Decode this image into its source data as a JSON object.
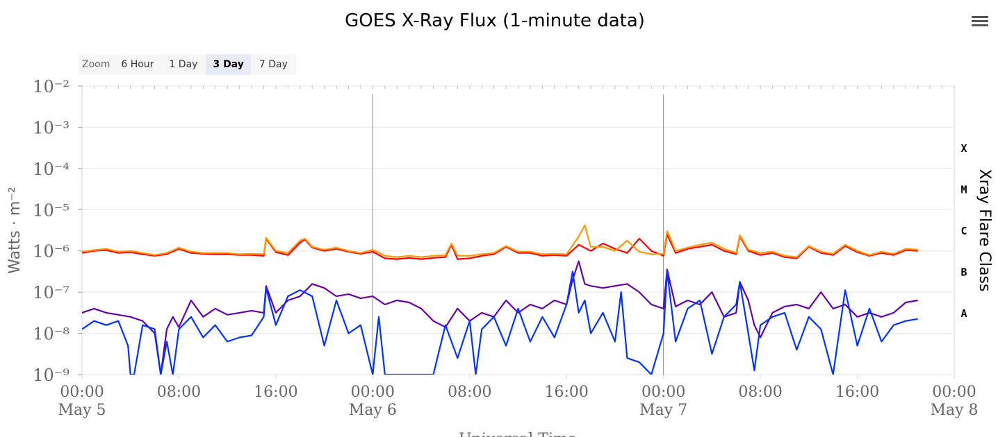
{
  "chart_data": {
    "type": "line",
    "title": "GOES X-Ray Flux (1-minute data)",
    "xlabel": "Universal Time",
    "ylabel": "Watts · m⁻²",
    "y_right_label": "Xray Flare Class",
    "y_scale": "log",
    "ylim": [
      1e-09,
      0.01
    ],
    "y_ticks": [
      "10⁻²",
      "10⁻³",
      "10⁻⁴",
      "10⁻⁵",
      "10⁻⁶",
      "10⁻⁷",
      "10⁻⁸",
      "10⁻⁹"
    ],
    "xlim": [
      "May 5 00:00",
      "May 8 00:00"
    ],
    "x_ticks": [
      {
        "t": 0,
        "time": "00:00",
        "date": "May 5"
      },
      {
        "t": 8,
        "time": "08:00",
        "date": ""
      },
      {
        "t": 16,
        "time": "16:00",
        "date": ""
      },
      {
        "t": 24,
        "time": "00:00",
        "date": "May 6"
      },
      {
        "t": 32,
        "time": "08:00",
        "date": ""
      },
      {
        "t": 40,
        "time": "16:00",
        "date": ""
      },
      {
        "t": 48,
        "time": "00:00",
        "date": "May 7"
      },
      {
        "t": 56,
        "time": "08:00",
        "date": ""
      },
      {
        "t": 64,
        "time": "16:00",
        "date": ""
      },
      {
        "t": 72,
        "time": "00:00",
        "date": "May 8"
      }
    ],
    "flare_classes": [
      {
        "label": "X",
        "min_exp": -4
      },
      {
        "label": "M",
        "min_exp": -5
      },
      {
        "label": "C",
        "min_exp": -6
      },
      {
        "label": "B",
        "min_exp": -7
      },
      {
        "label": "A",
        "min_exp": -8
      }
    ],
    "day_markers_hours": [
      24,
      48
    ],
    "grid": true,
    "legend": "none",
    "series": [
      {
        "color": "#ff0000",
        "x_hours": [
          0,
          1,
          2,
          3,
          4,
          5,
          6,
          7,
          8,
          9,
          10,
          11,
          12,
          13,
          14,
          15,
          15.2,
          16,
          17,
          18,
          18.4,
          19,
          20,
          21,
          22,
          23,
          24,
          25,
          26,
          27,
          28,
          29,
          30,
          30.5,
          31,
          32,
          33,
          34,
          35,
          36,
          37,
          38,
          39,
          40,
          41,
          42,
          43,
          44,
          45,
          46,
          47,
          48,
          48.3,
          49,
          50,
          51,
          52,
          53,
          54,
          54.3,
          55,
          56,
          57,
          58,
          59,
          60,
          61,
          62,
          63,
          64,
          65,
          66,
          67,
          68,
          69
        ],
        "y": [
          -6.05,
          -6.0,
          -5.98,
          -6.05,
          -6.03,
          -6.08,
          -6.12,
          -6.08,
          -5.95,
          -6.05,
          -6.07,
          -6.08,
          -6.08,
          -6.1,
          -6.1,
          -6.12,
          -5.7,
          -6.03,
          -6.1,
          -5.8,
          -5.72,
          -5.92,
          -6.0,
          -5.95,
          -6.02,
          -6.07,
          -6.02,
          -6.18,
          -6.2,
          -6.17,
          -6.2,
          -6.17,
          -6.15,
          -5.85,
          -6.2,
          -6.18,
          -6.12,
          -6.08,
          -5.9,
          -6.05,
          -6.05,
          -6.12,
          -6.1,
          -6.12,
          -5.85,
          -6.0,
          -5.82,
          -5.95,
          -6.05,
          -5.7,
          -6.0,
          -6.12,
          -5.6,
          -6.05,
          -5.95,
          -5.9,
          -5.85,
          -6.0,
          -6.08,
          -5.65,
          -6.0,
          -6.1,
          -6.05,
          -6.15,
          -6.18,
          -5.9,
          -6.05,
          -6.1,
          -5.88,
          -6.03,
          -6.12,
          -6.05,
          -6.1,
          -5.98,
          -6.0
        ]
      },
      {
        "color": "#ff9900",
        "x_hours": [
          0,
          1,
          2,
          3,
          4,
          5,
          6,
          7,
          8,
          9,
          10,
          11,
          12,
          13,
          14,
          15,
          15.2,
          16,
          17,
          18,
          18.4,
          19,
          20,
          21,
          22,
          23,
          24,
          25,
          26,
          27,
          28,
          29,
          30,
          30.5,
          31,
          32,
          33,
          34,
          35,
          36,
          37,
          38,
          39,
          40,
          41,
          41.5,
          42,
          43,
          44,
          45,
          46,
          47,
          48,
          48.3,
          49,
          50,
          51,
          52,
          53,
          54,
          54.3,
          55,
          56,
          57,
          58,
          59,
          60,
          61,
          62,
          63,
          64,
          65,
          66,
          67,
          68,
          69
        ],
        "y": [
          -6.02,
          -5.98,
          -5.95,
          -6.02,
          -6.0,
          -6.05,
          -6.1,
          -6.05,
          -5.92,
          -6.02,
          -6.05,
          -6.05,
          -6.05,
          -6.08,
          -6.07,
          -6.08,
          -5.68,
          -6.0,
          -6.05,
          -5.75,
          -5.7,
          -5.9,
          -5.97,
          -5.92,
          -6.0,
          -6.05,
          -5.97,
          -6.12,
          -6.15,
          -6.12,
          -6.15,
          -6.12,
          -6.1,
          -5.82,
          -6.12,
          -6.12,
          -6.08,
          -6.05,
          -5.88,
          -6.02,
          -6.02,
          -6.08,
          -6.07,
          -6.08,
          -5.65,
          -5.38,
          -5.9,
          -5.9,
          -6.0,
          -5.75,
          -6.02,
          -6.08,
          -6.07,
          -5.52,
          -6.0,
          -5.92,
          -5.85,
          -5.8,
          -5.95,
          -6.05,
          -5.62,
          -5.97,
          -6.05,
          -6.02,
          -6.12,
          -6.15,
          -5.88,
          -6.02,
          -6.07,
          -5.85,
          -6.0,
          -6.1,
          -6.02,
          -6.07,
          -5.95,
          -5.97
        ]
      },
      {
        "color": "#6600aa",
        "x_hours": [
          0,
          1,
          2,
          3,
          4,
          5,
          6,
          6.5,
          7,
          7.5,
          8,
          9,
          10,
          11,
          12,
          13,
          14,
          15,
          15.2,
          16,
          17,
          18,
          19,
          20,
          21,
          22,
          23,
          24,
          25,
          26,
          27,
          28,
          29,
          30,
          31,
          32,
          33,
          34,
          35,
          36,
          37,
          38,
          39,
          40,
          40.5,
          41,
          41.5,
          42,
          43,
          44,
          45,
          46,
          47,
          48,
          48.3,
          49,
          50,
          51,
          52,
          53,
          54,
          54.3,
          55,
          55.5,
          56,
          57,
          58,
          59,
          60,
          61,
          62,
          63,
          64,
          65,
          66,
          67,
          68,
          69
        ],
        "y": [
          -7.5,
          -7.4,
          -7.5,
          -7.55,
          -7.6,
          -7.7,
          -8.0,
          -9.0,
          -7.9,
          -7.6,
          -7.85,
          -7.2,
          -7.6,
          -7.4,
          -7.55,
          -7.5,
          -7.45,
          -7.5,
          -6.85,
          -7.5,
          -7.2,
          -7.1,
          -6.8,
          -6.9,
          -7.1,
          -7.05,
          -7.15,
          -7.1,
          -7.3,
          -7.2,
          -7.25,
          -7.4,
          -7.7,
          -7.85,
          -7.4,
          -7.7,
          -7.5,
          -7.6,
          -7.2,
          -7.5,
          -7.3,
          -7.4,
          -7.2,
          -7.3,
          -6.7,
          -6.25,
          -6.8,
          -6.85,
          -6.9,
          -6.85,
          -6.8,
          -7.0,
          -7.3,
          -7.4,
          -6.45,
          -7.35,
          -7.2,
          -7.3,
          -7.0,
          -7.6,
          -7.5,
          -6.75,
          -7.2,
          -7.8,
          -8.1,
          -7.5,
          -7.35,
          -7.3,
          -7.4,
          -7.0,
          -7.4,
          -7.3,
          -7.6,
          -7.5,
          -7.6,
          -7.5,
          -7.25,
          -7.2
        ]
      },
      {
        "color": "#0033ff",
        "x_hours": [
          0,
          1,
          2,
          3,
          3.8,
          4,
          4.3,
          5,
          6,
          6.5,
          7,
          7.5,
          8,
          9,
          10,
          11,
          12,
          13,
          14,
          15,
          15.2,
          16,
          17,
          18,
          19,
          20,
          21,
          22,
          23,
          24,
          24.5,
          25,
          26,
          27,
          28,
          29,
          30,
          31,
          32,
          32.5,
          33,
          34,
          35,
          36,
          37,
          38,
          39,
          40,
          40.5,
          41,
          41.5,
          42,
          43,
          44,
          44.5,
          45,
          46,
          47,
          48,
          48.3,
          49,
          50,
          51,
          52,
          53,
          54,
          54.3,
          55,
          55.5,
          56,
          57,
          58,
          59,
          60,
          61,
          62,
          63,
          64,
          65,
          66,
          67,
          68,
          69
        ],
        "y": [
          -7.9,
          -7.7,
          -7.8,
          -7.7,
          -8.3,
          -9.0,
          -9.2,
          -7.8,
          -7.9,
          -9.2,
          -8.2,
          -9.2,
          -7.9,
          -7.6,
          -8.1,
          -7.8,
          -8.2,
          -8.1,
          -8.05,
          -7.6,
          -6.9,
          -7.8,
          -7.1,
          -6.95,
          -7.1,
          -8.3,
          -7.2,
          -8.0,
          -7.8,
          -9.0,
          -7.6,
          -9.1,
          -9.1,
          -9.1,
          -9.1,
          -9.1,
          -7.8,
          -8.6,
          -7.7,
          -9.0,
          -7.9,
          -7.6,
          -8.3,
          -7.4,
          -8.2,
          -7.6,
          -8.1,
          -7.3,
          -6.5,
          -7.5,
          -7.2,
          -8.0,
          -7.5,
          -8.2,
          -7.0,
          -8.6,
          -8.7,
          -9.1,
          -8.0,
          -6.5,
          -8.2,
          -7.4,
          -7.2,
          -8.5,
          -7.6,
          -7.3,
          -6.75,
          -8.0,
          -8.9,
          -7.8,
          -7.6,
          -7.5,
          -8.4,
          -7.6,
          -7.9,
          -9.0,
          -6.95,
          -8.3,
          -7.4,
          -8.2,
          -7.8,
          -7.7,
          -7.65
        ]
      }
    ]
  },
  "zoom": {
    "label": "Zoom",
    "buttons": [
      "6 Hour",
      "1 Day",
      "3 Day",
      "7 Day"
    ],
    "active": "3 Day"
  }
}
